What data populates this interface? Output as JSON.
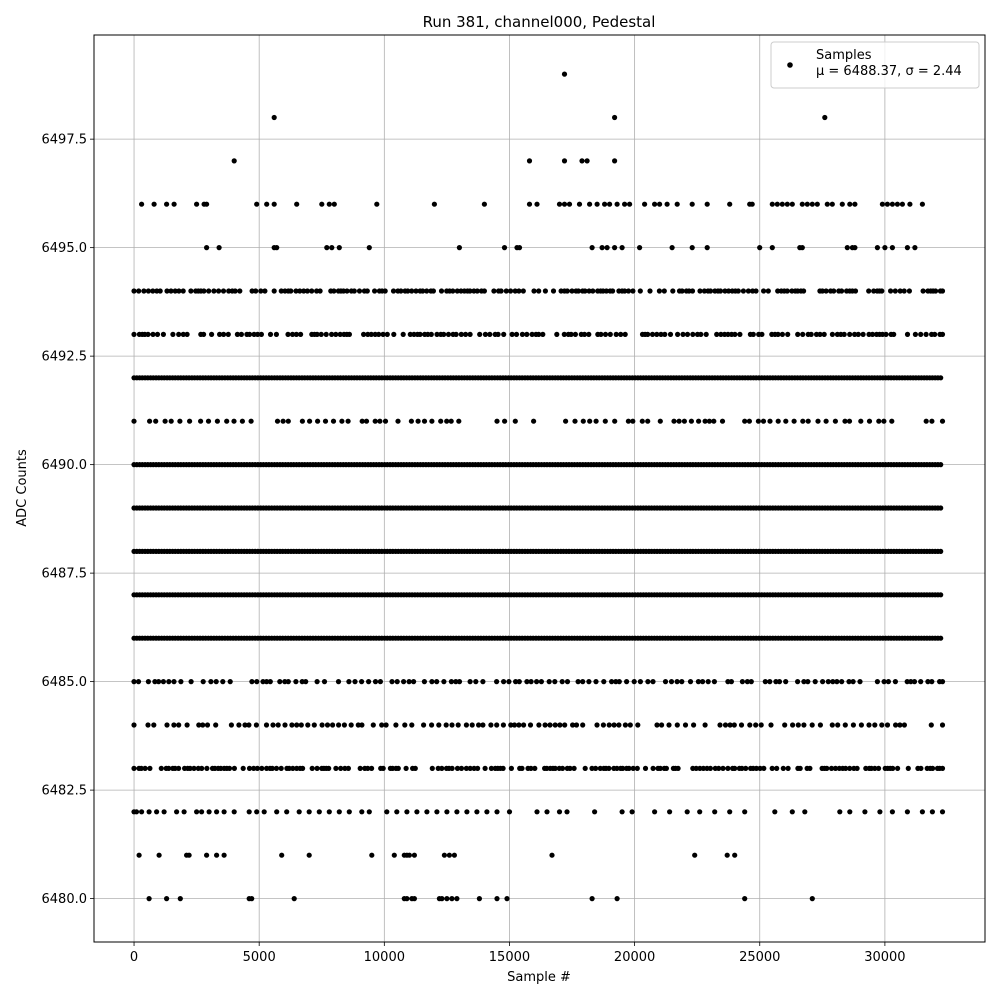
{
  "chart_data": {
    "type": "scatter",
    "title": "Run 381, channel000, Pedestal",
    "xlabel": "Sample #",
    "ylabel": "ADC Counts",
    "xlim": [
      -1600,
      34000
    ],
    "ylim": [
      6479.0,
      6499.9
    ],
    "xticks": [
      0,
      5000,
      10000,
      15000,
      20000,
      25000,
      30000
    ],
    "yticks": [
      6480.0,
      6482.5,
      6485.0,
      6487.5,
      6490.0,
      6492.5,
      6495.0,
      6497.5
    ],
    "xtick_labels": [
      "0",
      "5000",
      "10000",
      "15000",
      "20000",
      "25000",
      "30000"
    ],
    "ytick_labels": [
      "6480.0",
      "6482.5",
      "6485.0",
      "6487.5",
      "6490.0",
      "6492.5",
      "6495.0",
      "6497.5"
    ],
    "grid": true,
    "legend_position": "top-right",
    "marker_color": "#000000",
    "x_max_sample": 32300,
    "series": [
      {
        "name": "Samples",
        "legend_subtext": "μ = 6488.37, σ = 2.44",
        "bands": [
          {
            "y": 6480,
            "x": [
              600,
              1300,
              1850,
              4600,
              4700,
              6400,
              10800,
              10900,
              11100,
              11200,
              12200,
              12300,
              12500,
              12700,
              12900,
              13800,
              14500,
              14900,
              18300,
              19300,
              24400,
              27100
            ]
          },
          {
            "y": 6481,
            "x": [
              200,
              1000,
              2100,
              2200,
              2900,
              3300,
              3600,
              5900,
              7000,
              9500,
              10400,
              10800,
              10900,
              11000,
              11200,
              12400,
              12600,
              12800,
              16700,
              22400,
              23700,
              24000
            ]
          },
          {
            "y": 6482,
            "x": [
              0,
              100,
              300,
              600,
              900,
              1200,
              1700,
              2000,
              2500,
              2700,
              3000,
              3300,
              3600,
              4000,
              4600,
              4900,
              5200,
              5700,
              6100,
              6600,
              7000,
              7400,
              7800,
              8200,
              8600,
              9100,
              9400,
              10100,
              10500,
              10900,
              11300,
              11700,
              12100,
              12500,
              12900,
              13300,
              13700,
              14100,
              14500,
              15000,
              16100,
              16500,
              17000,
              17300,
              18400,
              19500,
              19900,
              20800,
              21400,
              22100,
              22600,
              23200,
              23800,
              24400,
              25600,
              26300,
              26800,
              28200,
              28600,
              29200,
              29800,
              30300,
              30900,
              31500,
              31900,
              32300
            ]
          },
          {
            "y": 6483,
            "freq": 140
          },
          {
            "y": 6484,
            "freq": 240
          },
          {
            "y": 6485,
            "freq": 230
          },
          {
            "y": 6486,
            "dense": true
          },
          {
            "y": 6487,
            "dense": true
          },
          {
            "y": 6488,
            "dense": true
          },
          {
            "y": 6489,
            "dense": true
          },
          {
            "y": 6490,
            "dense": true
          },
          {
            "y": 6491,
            "freq": 280
          },
          {
            "y": 6492,
            "dense": true
          },
          {
            "y": 6493,
            "freq": 170
          },
          {
            "y": 6494,
            "freq": 150
          },
          {
            "y": 6495,
            "x": [
              2900,
              3400,
              5600,
              5700,
              7700,
              7900,
              8200,
              9400,
              13000,
              14800,
              15300,
              15400,
              18300,
              18700,
              18900,
              19200,
              19500,
              20200,
              21500,
              22300,
              22900,
              25000,
              25500,
              26600,
              26700,
              28500,
              28700,
              28800,
              29700,
              30000,
              30300,
              30900,
              31200
            ]
          },
          {
            "y": 6496,
            "x": [
              300,
              800,
              1300,
              1600,
              2500,
              2800,
              2900,
              4900,
              5300,
              5600,
              6500,
              7500,
              7800,
              8000,
              9700,
              12000,
              14000,
              15800,
              16100,
              17000,
              17200,
              17400,
              17800,
              18200,
              18500,
              18800,
              19000,
              19300,
              19600,
              19800,
              20400,
              20800,
              21000,
              21300,
              21700,
              22300,
              22900,
              23800,
              24600,
              24700,
              25500,
              25700,
              25900,
              26100,
              26300,
              26700,
              26900,
              27100,
              27300,
              27700,
              27900,
              28300,
              28600,
              28800,
              29900,
              30100,
              30300,
              30500,
              30700,
              31000,
              31500
            ]
          },
          {
            "y": 6497,
            "x": [
              4000,
              15800,
              17200,
              17900,
              18100,
              19200
            ]
          },
          {
            "y": 6498,
            "x": [
              5600,
              19200,
              27600
            ]
          },
          {
            "y": 6499,
            "x": [
              17200
            ]
          }
        ]
      }
    ]
  }
}
